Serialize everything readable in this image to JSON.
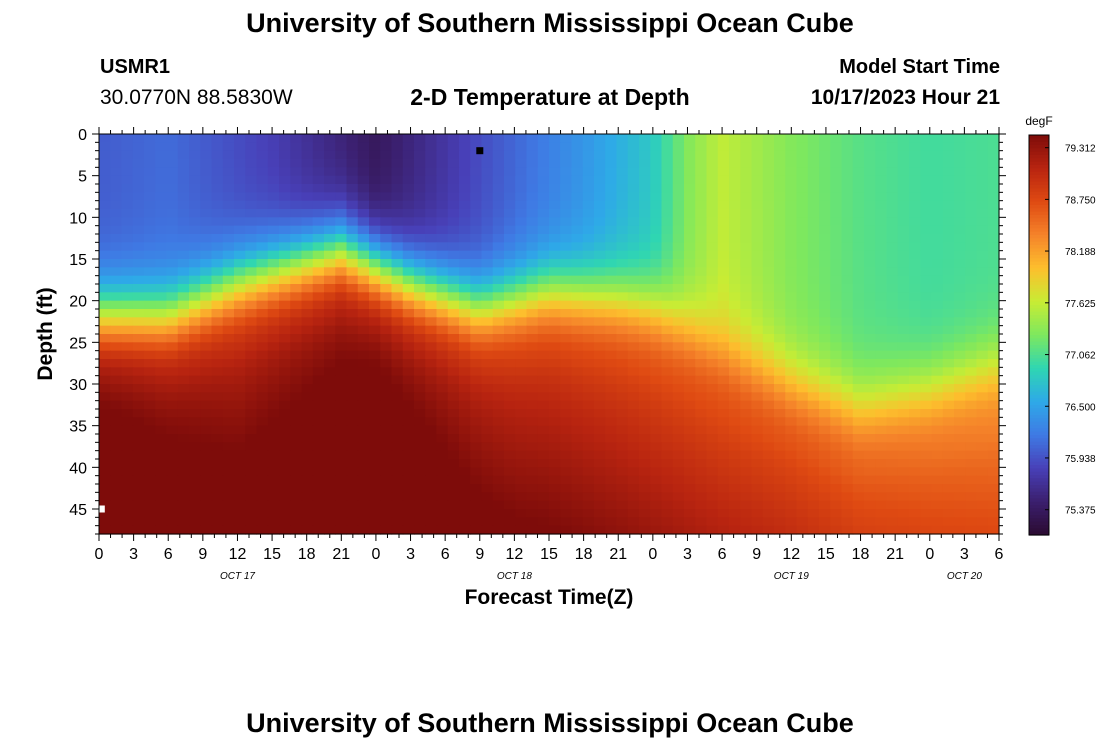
{
  "header": {
    "title": "University of Southern Mississippi Ocean Cube",
    "station_id": "USMR1",
    "coords": "30.0770N  88.5830W",
    "plot_title": "2-D Temperature at Depth",
    "model_start_label": "Model Start Time",
    "model_start_value": "10/17/2023 Hour 21"
  },
  "footer": {
    "title": "University of Southern Mississippi Ocean Cube"
  },
  "chart_data": {
    "type": "heatmap",
    "xlabel": "Forecast Time(Z)",
    "ylabel": "Depth (ft)",
    "x_tick_labels": [
      "0",
      "3",
      "6",
      "9",
      "12",
      "15",
      "18",
      "21",
      "0",
      "3",
      "6",
      "9",
      "12",
      "15",
      "18",
      "21",
      "0",
      "3",
      "6",
      "9",
      "12",
      "15",
      "18",
      "21",
      "0",
      "3",
      "6"
    ],
    "day_labels": [
      {
        "label": "OCT 17",
        "tick_index": 4
      },
      {
        "label": "OCT 18",
        "tick_index": 12
      },
      {
        "label": "OCT 19",
        "tick_index": 20
      },
      {
        "label": "OCT 20",
        "tick_index": 25
      }
    ],
    "x_range_hours": [
      0,
      78
    ],
    "y_ticks": [
      0,
      5,
      10,
      15,
      20,
      25,
      30,
      35,
      40,
      45
    ],
    "y_range_ft": [
      0,
      48
    ],
    "y_inverted": true,
    "colorbar": {
      "unit": "degF",
      "min": 75.1,
      "max": 79.45,
      "tick_labels": [
        "79.312",
        "78.750",
        "78.188",
        "77.625",
        "77.062",
        "76.500",
        "75.938",
        "75.375"
      ],
      "colors": [
        "#2b0b31",
        "#3b1f6e",
        "#4840b8",
        "#3f7ae4",
        "#2ea9e8",
        "#2fd6b2",
        "#7ee85e",
        "#c8ec34",
        "#fdbf2d",
        "#f5832a",
        "#df4a12",
        "#b82410",
        "#7e0c0a"
      ]
    },
    "thermocline_depth_ft": {
      "hours": [
        0,
        6,
        12,
        21,
        27,
        33,
        39,
        45,
        48,
        54,
        60,
        66,
        72,
        78
      ],
      "depth": [
        22,
        22,
        18,
        14,
        18,
        21,
        19,
        20,
        21,
        26,
        30,
        33,
        31,
        28
      ]
    },
    "upper_layer_temp_degF": {
      "hours": [
        0,
        6,
        15,
        24,
        33,
        42,
        48,
        51,
        54,
        60,
        66,
        72,
        78
      ],
      "temp": [
        76.0,
        76.1,
        75.8,
        75.35,
        75.9,
        76.4,
        76.8,
        77.3,
        77.6,
        77.3,
        77.1,
        77.0,
        77.05
      ]
    },
    "deep_layer_temp_degF": {
      "hours": [
        0,
        12,
        24,
        36,
        48,
        60,
        72,
        78
      ],
      "temp": [
        79.45,
        79.15,
        79.4,
        79.0,
        78.8,
        78.75,
        78.55,
        78.45
      ]
    },
    "markers": [
      {
        "hour": 33,
        "depth": 2,
        "color": "#000000"
      },
      {
        "hour": 0.2,
        "depth": 45,
        "color": "#ffffff"
      }
    ]
  }
}
